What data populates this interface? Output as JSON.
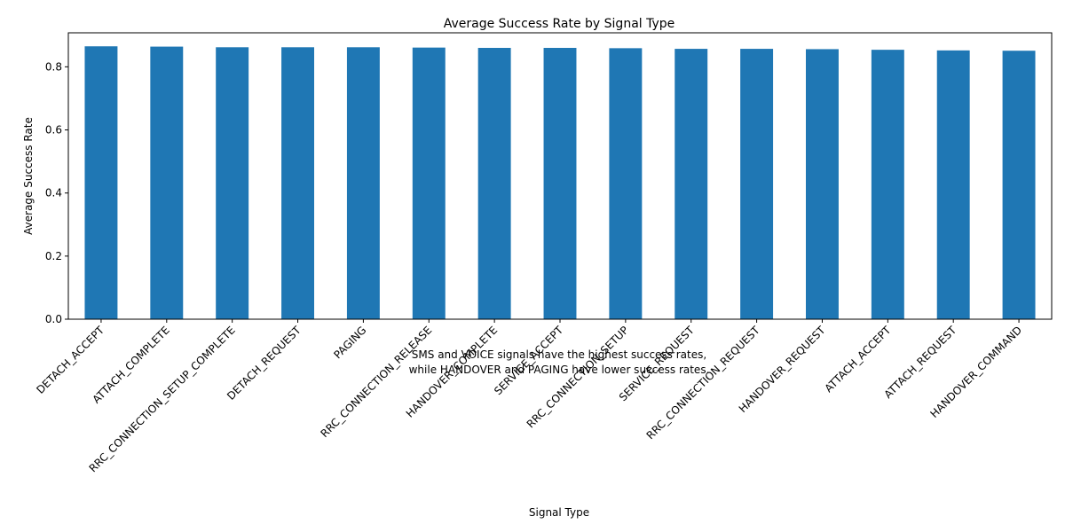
{
  "chart_data": {
    "type": "bar",
    "title": "Average Success Rate by Signal Type",
    "xlabel": "Signal Type",
    "ylabel": "Average Success Rate",
    "ylim": [
      0,
      0.9
    ],
    "yticks": [
      "0.0",
      "0.2",
      "0.4",
      "0.6",
      "0.8"
    ],
    "ytick_values": [
      0.0,
      0.2,
      0.4,
      0.6,
      0.8
    ],
    "grid": false,
    "bar_color": "#1f77b4",
    "categories": [
      "DETACH_ACCEPT",
      "ATTACH_COMPLETE",
      "RRC_CONNECTION_SETUP_COMPLETE",
      "DETACH_REQUEST",
      "PAGING",
      "RRC_CONNECTION_RELEASE",
      "HANDOVER_COMPLETE",
      "SERVICE_ACCEPT",
      "RRC_CONNECTION_SETUP",
      "SERVICE_REQUEST",
      "RRC_CONNECTION_REQUEST",
      "HANDOVER_REQUEST",
      "ATTACH_ACCEPT",
      "ATTACH_REQUEST",
      "HANDOVER_COMMAND"
    ],
    "values": [
      0.865,
      0.864,
      0.862,
      0.862,
      0.862,
      0.861,
      0.86,
      0.86,
      0.859,
      0.857,
      0.857,
      0.856,
      0.854,
      0.852,
      0.851
    ],
    "annotation": {
      "line1": "SMS and VOICE signals have the highest success rates,",
      "line2": "while HANDOVER and PAGING have lower success rates."
    }
  }
}
